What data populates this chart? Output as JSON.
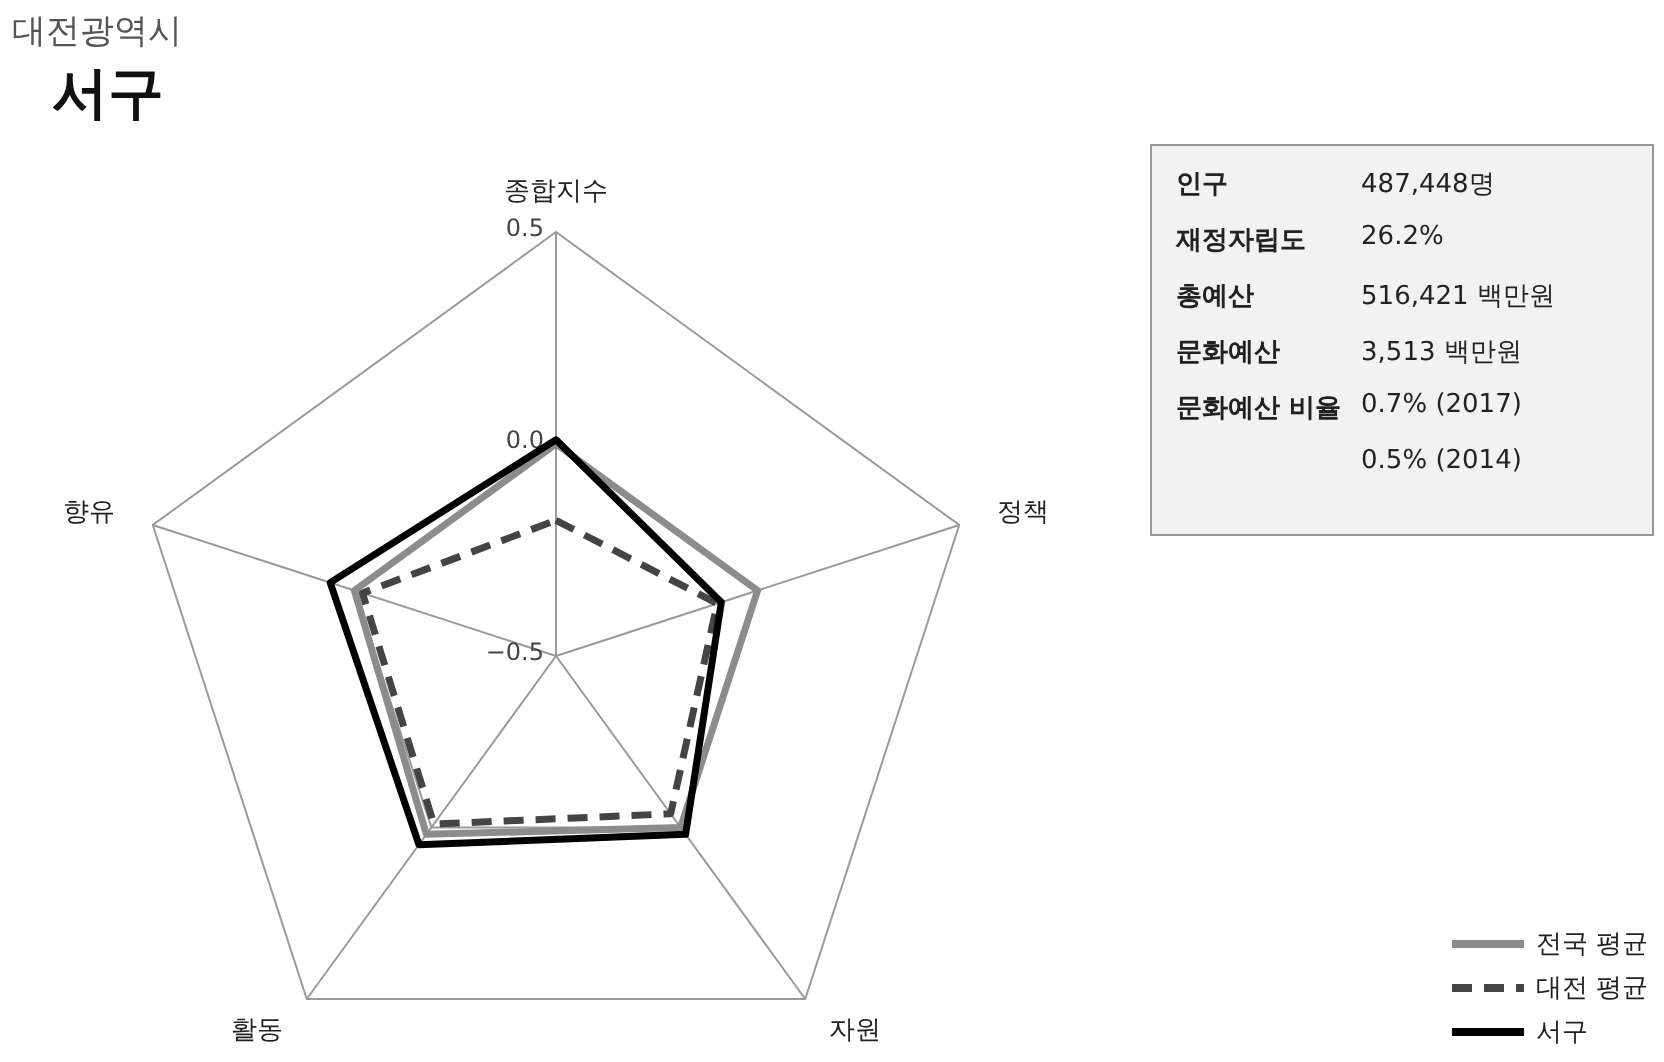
{
  "chart_data": {
    "type": "radar",
    "title": "서구",
    "subtitle": "대전광역시",
    "categories": [
      "종합지수",
      "정책",
      "자원",
      "활동",
      "향유"
    ],
    "series": [
      {
        "name": "전국 평균",
        "color": "#8c8c8c",
        "line_style": "solid",
        "values": [
          0.0,
          0.0,
          0.0,
          0.02,
          0.0
        ]
      },
      {
        "name": "대전 평균",
        "color": "#444444",
        "line_style": "dashed",
        "values": [
          -0.18,
          -0.1,
          -0.04,
          -0.01,
          -0.02
        ]
      },
      {
        "name": "서구",
        "color": "#000000",
        "line_style": "solid",
        "values": [
          0.01,
          -0.09,
          0.02,
          0.05,
          0.06
        ]
      }
    ],
    "ylim": [
      -0.5,
      0.5
    ],
    "yticks": [
      {
        "value": -0.5,
        "label": "−0.5"
      },
      {
        "value": 0,
        "label": "0.0"
      },
      0.5
    ],
    "grid": true,
    "legend": "bottom right",
    "marker": "none",
    "annotations": [
      "인구",
      "487,448명",
      "재정자립도",
      "26.2%",
      "총예산",
      "516,421 백만원",
      "문화예산",
      "3,513 백만원",
      "문화예산 비율",
      "0.7% (2017)",
      "0.5% (2014)"
    ]
  }
}
